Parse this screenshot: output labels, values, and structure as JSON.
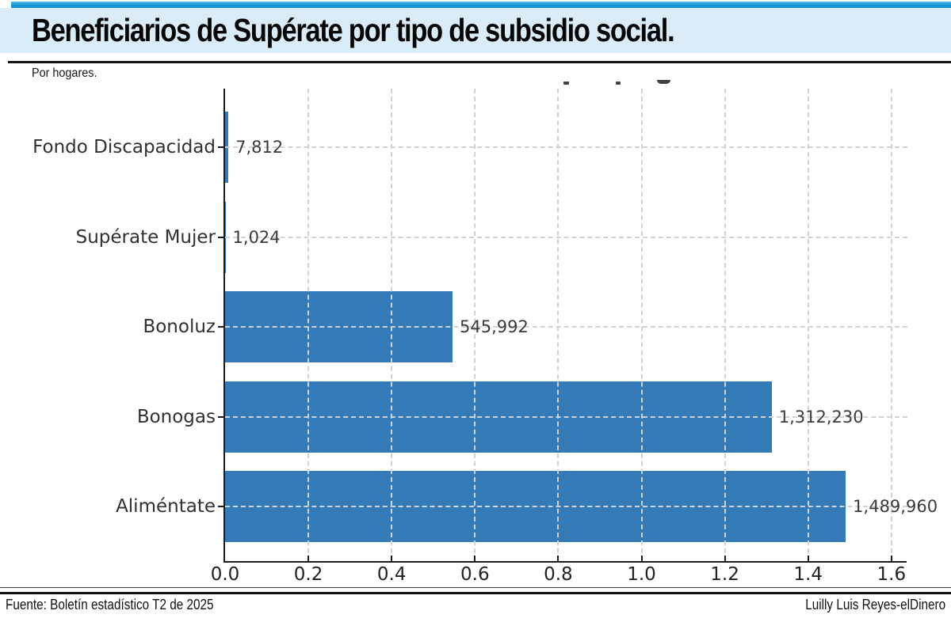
{
  "header": {
    "title": "Beneficiarios de Supérate por tipo de subsidio social.",
    "subtitle": "Por hogares.",
    "band_color": "#daecf8",
    "top_bar_color": "#1697d6"
  },
  "chart_data": {
    "type": "bar",
    "orientation": "horizontal",
    "categories": [
      "Fondo Discapacidad",
      "Supérate Mujer",
      "Bonoluz",
      "Bonogas",
      "Aliméntate"
    ],
    "values": [
      7812,
      1024,
      545992,
      1312230,
      1489960
    ],
    "value_labels": [
      "7,812",
      "1,024",
      "545,992",
      "1,312,230",
      "1,489,960"
    ],
    "x_tick_labels": [
      "0.0",
      "0.2",
      "0.4",
      "0.6",
      "0.8",
      "1.0",
      "1.2",
      "1.4",
      "1.6"
    ],
    "x_tick_values": [
      0,
      200000,
      400000,
      600000,
      800000,
      1000000,
      1200000,
      1400000,
      1600000
    ],
    "xlim": [
      0,
      1638000
    ],
    "x_unit": "millions",
    "bar_color": "#337ab7",
    "grid": {
      "x": true,
      "y": true,
      "style": "dashed",
      "color": "#cfd3d8",
      "above_bars": true
    },
    "legend": null
  },
  "footer": {
    "source": "Fuente: Boletín estadístico T2 de 2025",
    "credit": "Luilly Luis Reyes-elDinero"
  }
}
